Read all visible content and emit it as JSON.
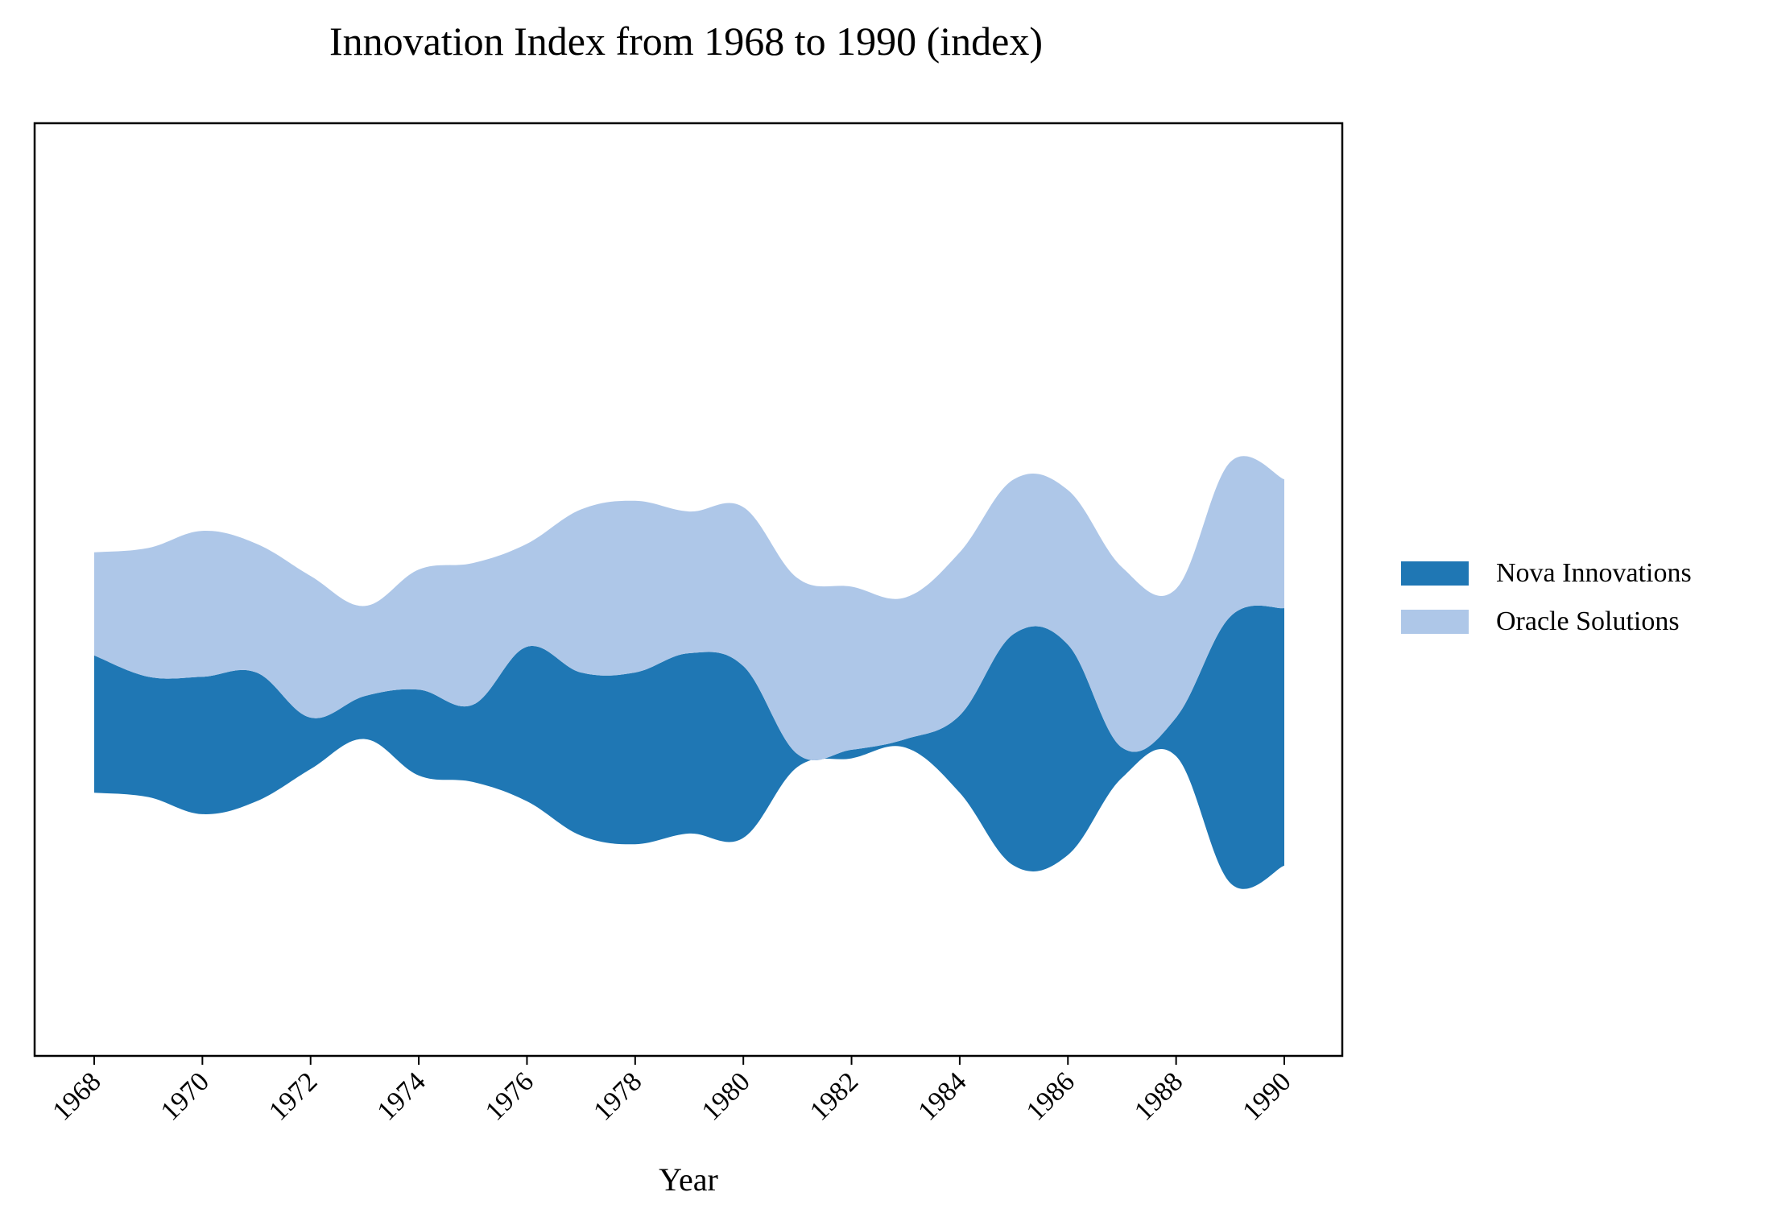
{
  "chart_data": {
    "type": "area",
    "subtype": "streamgraph",
    "title": "Innovation Index from 1968 to 1990 (index)",
    "xlabel": "Year",
    "ylabel": "",
    "x": [
      1968,
      1969,
      1970,
      1971,
      1972,
      1973,
      1974,
      1975,
      1976,
      1977,
      1978,
      1979,
      1980,
      1981,
      1982,
      1983,
      1984,
      1985,
      1986,
      1987,
      1988,
      1989,
      1990
    ],
    "xticks": [
      "1968",
      "1970",
      "1972",
      "1974",
      "1976",
      "1978",
      "1980",
      "1982",
      "1984",
      "1986",
      "1988",
      "1990"
    ],
    "series": [
      {
        "name": "Nova Innovations",
        "color": "#1f77b4",
        "values": [
          32,
          28,
          32,
          30,
          12,
          10,
          20,
          18,
          36,
          38,
          40,
          42,
          40,
          3,
          2,
          2,
          18,
          54,
          49,
          7,
          9,
          62,
          60
        ]
      },
      {
        "name": "Oracle Solutions",
        "color": "#aec7e8",
        "values": [
          24,
          30,
          34,
          30,
          33,
          21,
          28,
          33,
          24,
          38,
          40,
          33,
          37,
          41,
          38,
          33,
          38,
          36,
          36,
          42,
          30,
          36,
          30
        ]
      }
    ],
    "legend": "right",
    "grid": false,
    "y_axis_visible": false
  }
}
